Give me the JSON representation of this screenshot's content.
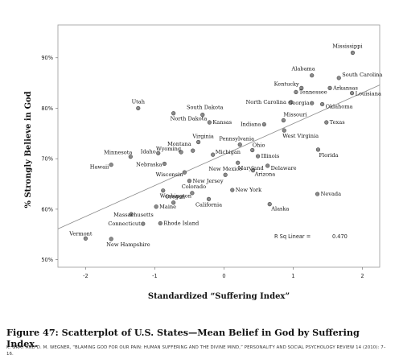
{
  "chart_data": {
    "type": "scatter",
    "xlabel": "Standardized “Suffering Index”",
    "ylabel": "% Strongly Believe in God",
    "xlim": [
      -2.4,
      2.25
    ],
    "ylim": [
      0.485,
      0.965
    ],
    "xticks": [
      {
        "value": -2,
        "label": "-2"
      },
      {
        "value": -1,
        "label": "-1"
      },
      {
        "value": 0,
        "label": "0"
      },
      {
        "value": 1,
        "label": "1"
      },
      {
        "value": 2,
        "label": "2"
      }
    ],
    "yticks": [
      {
        "value": 0.5,
        "label": "50%"
      },
      {
        "value": 0.6,
        "label": "60%"
      },
      {
        "value": 0.7,
        "label": "70%"
      },
      {
        "value": 0.8,
        "label": "80%"
      },
      {
        "value": 0.9,
        "label": "90%"
      }
    ],
    "fit_line": {
      "x": [
        -2.4,
        2.25
      ],
      "y": [
        0.561,
        0.846
      ]
    },
    "annotation": {
      "label": "R Sq Linear =",
      "value": "0.470"
    },
    "points": [
      {
        "name": "Mississippi",
        "x": 1.86,
        "y": 0.91
      },
      {
        "name": "Alabama",
        "x": 1.27,
        "y": 0.865
      },
      {
        "name": "South Carolina",
        "x": 1.66,
        "y": 0.86
      },
      {
        "name": "Kentucky",
        "x": 1.12,
        "y": 0.84
      },
      {
        "name": "Arkansas",
        "x": 1.53,
        "y": 0.84
      },
      {
        "name": "Tennessee",
        "x": 1.04,
        "y": 0.832
      },
      {
        "name": "Louisiana",
        "x": 1.85,
        "y": 0.83
      },
      {
        "name": "North Carolina",
        "x": 0.97,
        "y": 0.812
      },
      {
        "name": "Georgia",
        "x": 1.27,
        "y": 0.81
      },
      {
        "name": "Oklahoma",
        "x": 1.42,
        "y": 0.808
      },
      {
        "name": "Utah",
        "x": -1.24,
        "y": 0.8
      },
      {
        "name": "South Dakota",
        "x": -0.31,
        "y": 0.787
      },
      {
        "name": "North Dakota",
        "x": -0.73,
        "y": 0.79
      },
      {
        "name": "Kansas",
        "x": -0.21,
        "y": 0.772
      },
      {
        "name": "Missouri",
        "x": 0.86,
        "y": 0.776
      },
      {
        "name": "Indiana",
        "x": 0.58,
        "y": 0.768
      },
      {
        "name": "Texas",
        "x": 1.48,
        "y": 0.772
      },
      {
        "name": "West Virginia",
        "x": 0.87,
        "y": 0.756
      },
      {
        "name": "Virginia",
        "x": -0.37,
        "y": 0.733
      },
      {
        "name": "Pennsylvania",
        "x": 0.23,
        "y": 0.728
      },
      {
        "name": "Ohio",
        "x": 0.41,
        "y": 0.717
      },
      {
        "name": "Florida",
        "x": 1.36,
        "y": 0.718
      },
      {
        "name": "Wyoming",
        "x": -0.62,
        "y": 0.713
      },
      {
        "name": "Montana",
        "x": -0.45,
        "y": 0.716
      },
      {
        "name": "Michigan",
        "x": -0.16,
        "y": 0.708
      },
      {
        "name": "Illinois",
        "x": 0.49,
        "y": 0.705
      },
      {
        "name": "Idaho",
        "x": -0.95,
        "y": 0.711
      },
      {
        "name": "Minnesota",
        "x": -1.35,
        "y": 0.704
      },
      {
        "name": "Nebraska",
        "x": -0.86,
        "y": 0.69
      },
      {
        "name": "Maryland",
        "x": 0.2,
        "y": 0.692
      },
      {
        "name": "Delaware",
        "x": 0.63,
        "y": 0.686
      },
      {
        "name": "Hawaii",
        "x": -1.63,
        "y": 0.688
      },
      {
        "name": "Arizona",
        "x": 0.42,
        "y": 0.677
      },
      {
        "name": "New Mexico",
        "x": 0.02,
        "y": 0.668
      },
      {
        "name": "Wisconsin",
        "x": -0.57,
        "y": 0.673
      },
      {
        "name": "New Jersey",
        "x": -0.5,
        "y": 0.656
      },
      {
        "name": "Colorado",
        "x": -0.46,
        "y": 0.632
      },
      {
        "name": "New York",
        "x": 0.12,
        "y": 0.638
      },
      {
        "name": "Washington",
        "x": -0.88,
        "y": 0.637
      },
      {
        "name": "Nevada",
        "x": 1.35,
        "y": 0.63
      },
      {
        "name": "California",
        "x": -0.22,
        "y": 0.62
      },
      {
        "name": "Oregon",
        "x": -0.73,
        "y": 0.613
      },
      {
        "name": "Alaska",
        "x": 0.66,
        "y": 0.61
      },
      {
        "name": "Maine",
        "x": -0.98,
        "y": 0.605
      },
      {
        "name": "Massachusetts",
        "x": -1.34,
        "y": 0.59
      },
      {
        "name": "Connecticut",
        "x": -1.17,
        "y": 0.571
      },
      {
        "name": "Rhode Island",
        "x": -0.92,
        "y": 0.572
      },
      {
        "name": "Vermont",
        "x": -2.0,
        "y": 0.542
      },
      {
        "name": "New Hampshire",
        "x": -1.63,
        "y": 0.541
      }
    ]
  },
  "caption": "Figure 47: Scatterplot of U.S. States—Mean Belief in God by Suffering Index.",
  "citation": "K. GRAY AND D. M. WEGNER, “BLAMING GOD FOR OUR PAIN: HUMAN SUFFERING AND THE DIVINE MIND,” PERSONALITY AND SOCIAL PSYCHOLOGY REVIEW 14 (2010): 7–16."
}
